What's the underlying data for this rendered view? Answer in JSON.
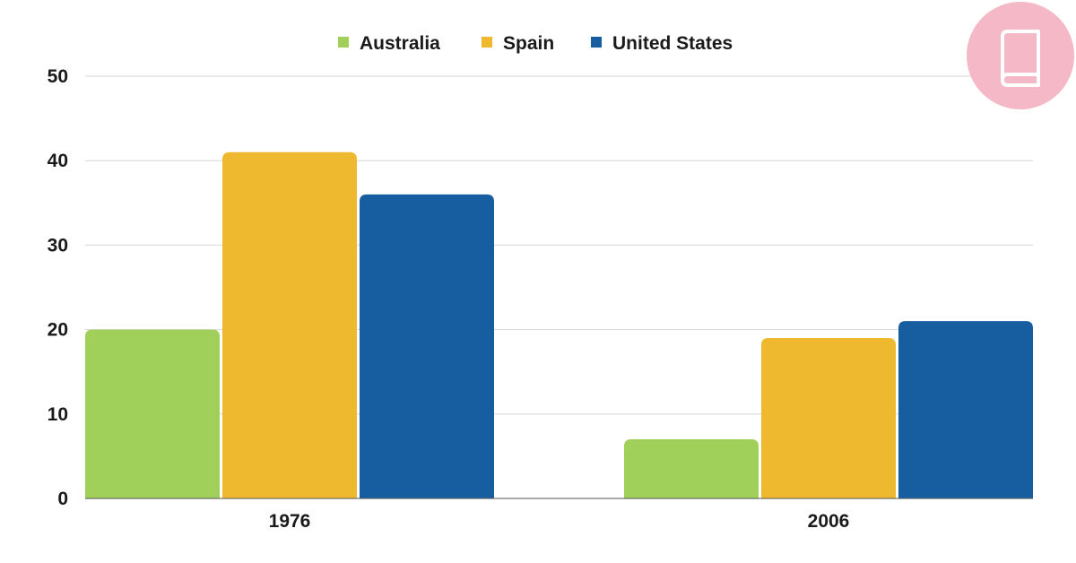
{
  "chart_data": {
    "type": "bar",
    "categories": [
      "1976",
      "2006"
    ],
    "series": [
      {
        "name": "Australia",
        "color": "#a0cf5a",
        "values": [
          20,
          7
        ]
      },
      {
        "name": "Spain",
        "color": "#eeb92e",
        "values": [
          41,
          19
        ]
      },
      {
        "name": "United States",
        "color": "#165ea0",
        "values": [
          36,
          21
        ]
      }
    ],
    "yticks": [
      "0",
      "10",
      "20",
      "30",
      "40",
      "50"
    ],
    "ylim": [
      0,
      50
    ],
    "legend_position": "top-center",
    "grid": true
  },
  "logo": {
    "icon": "book-icon",
    "color": "#f4b8c6"
  }
}
